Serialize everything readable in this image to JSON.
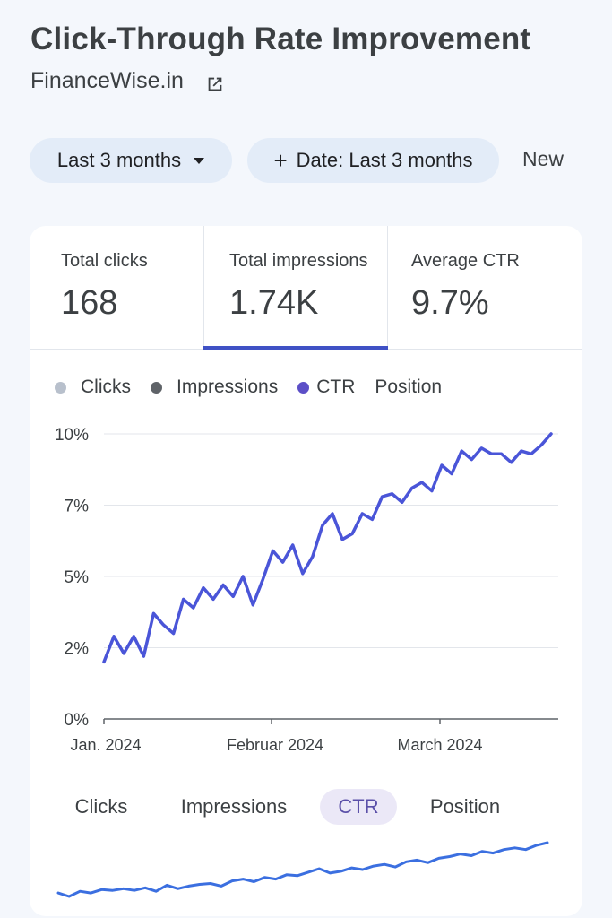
{
  "header": {
    "title": "Click-Through Rate Improvement",
    "site": "FinanceWise.in",
    "external_link_icon": "open-in-new-icon"
  },
  "filters": {
    "range_label": "Last 3 months",
    "date_filter_label": "Date: Last 3 months",
    "new_label": "New"
  },
  "metrics": [
    {
      "label": "Total clicks",
      "value": "168"
    },
    {
      "label": "Total impressions",
      "value": "1.74K",
      "selected": true
    },
    {
      "label": "Average CTR",
      "value": "9.7%"
    }
  ],
  "legend": [
    {
      "label": "Clicks",
      "color": "#b8c0cc"
    },
    {
      "label": "Impressions",
      "color": "#5f6368"
    },
    {
      "label": "CTR",
      "color": "#5c4fc7"
    },
    {
      "label": "Position",
      "color": ""
    }
  ],
  "chart_data": {
    "type": "line",
    "x": [
      "Jan 1",
      "Jan 3",
      "Jan 5",
      "Jan 7",
      "Jan 9",
      "Jan 11",
      "Jan 13",
      "Jan 15",
      "Jan 17",
      "Jan 19",
      "Jan 21",
      "Jan 23",
      "Jan 25",
      "Jan 27",
      "Jan 29",
      "Jan 31",
      "Feb 2",
      "Feb 4",
      "Feb 6",
      "Feb 8",
      "Feb 10",
      "Feb 12",
      "Feb 14",
      "Feb 16",
      "Feb 18",
      "Feb 20",
      "Feb 22",
      "Feb 24",
      "Feb 26",
      "Feb 28",
      "Mar 1",
      "Mar 3",
      "Mar 5",
      "Mar 7",
      "Mar 9",
      "Mar 11",
      "Mar 13",
      "Mar 15",
      "Mar 17",
      "Mar 19",
      "Mar 21",
      "Mar 23",
      "Mar 25",
      "Mar 27",
      "Mar 29",
      "Mar 31"
    ],
    "series": [
      {
        "name": "CTR",
        "color": "#4a55d8",
        "values": [
          2.0,
          2.9,
          2.3,
          2.9,
          2.2,
          3.7,
          3.3,
          3.0,
          4.2,
          3.9,
          4.6,
          4.2,
          4.7,
          4.3,
          5.0,
          4.0,
          4.9,
          5.9,
          5.5,
          6.1,
          5.1,
          5.7,
          6.8,
          7.2,
          6.3,
          6.5,
          7.2,
          7.0,
          7.8,
          7.9,
          7.6,
          8.1,
          8.3,
          8.0,
          8.9,
          8.6,
          9.4,
          9.1,
          9.5,
          9.3,
          9.3,
          9.0,
          9.4,
          9.3,
          9.6,
          10.0
        ]
      }
    ],
    "y_ticks": [
      "0%",
      "2%",
      "5%",
      "7%",
      "10%"
    ],
    "ylim": [
      0,
      10
    ],
    "x_ticks": [
      "Jan. 2024",
      "Februar 2024",
      "March 2024"
    ],
    "grid": true
  },
  "tabs": [
    {
      "label": "Clicks"
    },
    {
      "label": "Impressions"
    },
    {
      "label": "CTR",
      "active": true
    },
    {
      "label": "Position"
    }
  ],
  "sparkline": {
    "color": "#3b6fe0",
    "values": [
      1.0,
      0.6,
      1.2,
      1.0,
      1.4,
      1.3,
      1.5,
      1.3,
      1.6,
      1.2,
      1.9,
      1.5,
      1.8,
      2.0,
      2.1,
      1.8,
      2.4,
      2.6,
      2.3,
      2.8,
      2.6,
      3.1,
      3.0,
      3.4,
      3.8,
      3.3,
      3.5,
      3.9,
      3.7,
      4.1,
      4.3,
      4.0,
      4.6,
      4.8,
      4.5,
      5.0,
      5.2,
      5.5,
      5.3,
      5.8,
      5.6,
      6.0,
      6.2,
      6.0,
      6.5,
      6.8
    ]
  }
}
